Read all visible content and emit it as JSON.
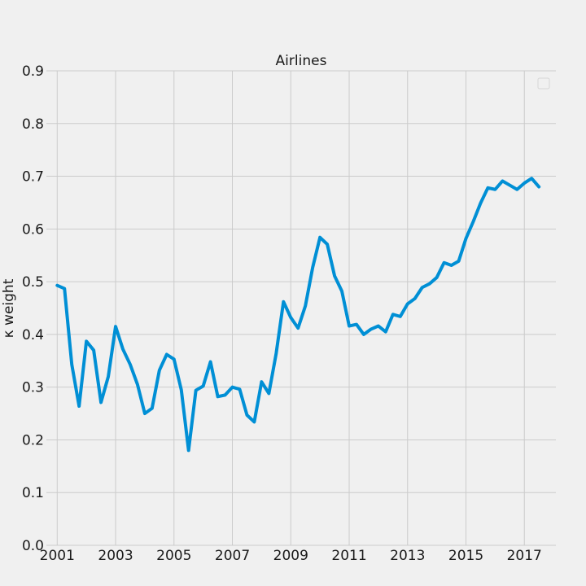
{
  "chart_data": {
    "type": "line",
    "title": "Airlines",
    "xlabel": "",
    "ylabel": "κ weight",
    "xlim": [
      2000.63,
      2018.08
    ],
    "ylim": [
      0.0,
      0.9
    ],
    "xticks": [
      2001,
      2003,
      2005,
      2007,
      2009,
      2011,
      2013,
      2015,
      2017
    ],
    "yticks": [
      0.0,
      0.1,
      0.2,
      0.3,
      0.4,
      0.5,
      0.6,
      0.7,
      0.8,
      0.9
    ],
    "ytick_labels": [
      "0.0",
      "0.1",
      "0.2",
      "0.3",
      "0.4",
      "0.5",
      "0.6",
      "0.7",
      "0.8",
      "0.9"
    ],
    "grid": true,
    "legend": "top-right (empty)",
    "colors": {
      "series": "#008fd5",
      "background": "#f0f0f0",
      "grid": "#cbcbcb"
    },
    "series": [
      {
        "x": [
          2001.0,
          2001.25,
          2001.5,
          2001.75,
          2002.0,
          2002.25,
          2002.5,
          2002.75,
          2003.0,
          2003.25,
          2003.5,
          2003.75,
          2004.0,
          2004.25,
          2004.5,
          2004.75,
          2005.0,
          2005.25,
          2005.5,
          2005.75,
          2006.0,
          2006.25,
          2006.5,
          2006.75,
          2007.0,
          2007.25,
          2007.5,
          2007.75,
          2008.0,
          2008.25,
          2008.5,
          2008.75,
          2009.0,
          2009.25,
          2009.5,
          2009.75,
          2010.0,
          2010.25,
          2010.5,
          2010.75,
          2011.0,
          2011.25,
          2011.5,
          2011.75,
          2012.0,
          2012.25,
          2012.5,
          2012.75,
          2013.0,
          2013.25,
          2013.5,
          2013.75,
          2014.0,
          2014.25,
          2014.5,
          2014.75,
          2015.0,
          2015.25,
          2015.5,
          2015.75,
          2016.0,
          2016.25,
          2016.5,
          2016.75,
          2017.0,
          2017.25,
          2017.5
        ],
        "values": [
          0.493,
          0.487,
          0.343,
          0.264,
          0.387,
          0.37,
          0.271,
          0.32,
          0.415,
          0.372,
          0.343,
          0.305,
          0.25,
          0.26,
          0.332,
          0.362,
          0.353,
          0.295,
          0.18,
          0.294,
          0.302,
          0.348,
          0.282,
          0.285,
          0.3,
          0.296,
          0.247,
          0.234,
          0.31,
          0.288,
          0.364,
          0.462,
          0.432,
          0.412,
          0.454,
          0.527,
          0.584,
          0.571,
          0.511,
          0.482,
          0.416,
          0.419,
          0.4,
          0.41,
          0.416,
          0.405,
          0.438,
          0.434,
          0.458,
          0.468,
          0.489,
          0.496,
          0.508,
          0.536,
          0.531,
          0.539,
          0.582,
          0.614,
          0.649,
          0.678,
          0.675,
          0.691,
          0.683,
          0.675,
          0.687,
          0.696,
          0.68
        ]
      }
    ]
  }
}
